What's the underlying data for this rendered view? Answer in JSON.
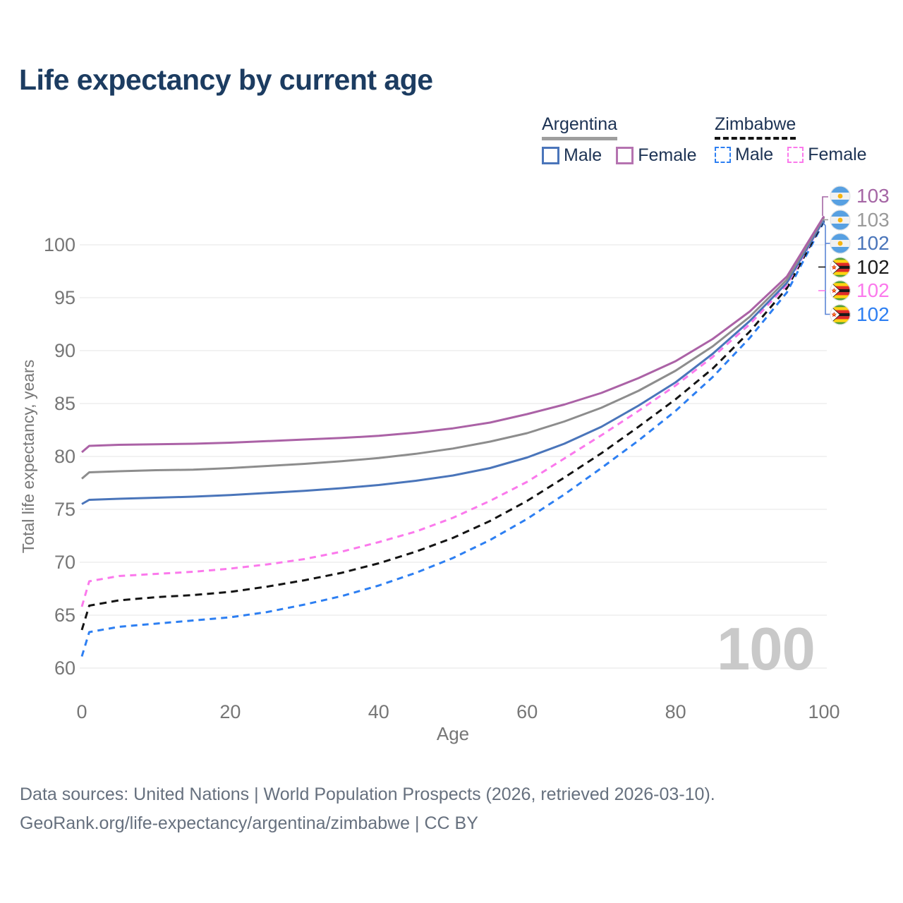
{
  "title": "Life expectancy by current age",
  "watermark_age": "100",
  "legend": {
    "groups": [
      {
        "name": "Argentina",
        "line_style": "solid",
        "line_color": "#9e9e9e",
        "items": [
          {
            "label": "Male",
            "color": "#4a75ba",
            "dashed": false
          },
          {
            "label": "Female",
            "color": "#b573b0",
            "dashed": false
          }
        ]
      },
      {
        "name": "Zimbabwe",
        "line_style": "dashed",
        "line_color": "#141414",
        "items": [
          {
            "label": "Male",
            "color": "#2d7ff2",
            "dashed": true
          },
          {
            "label": "Female",
            "color": "#fb79ec",
            "dashed": true
          }
        ]
      }
    ]
  },
  "end_labels": [
    {
      "value": "103",
      "color": "#a566a5",
      "flag": "argentina",
      "series": "Argentina Female"
    },
    {
      "value": "103",
      "color": "#9a9a9a",
      "flag": "argentina",
      "series": "Argentina Both sexes"
    },
    {
      "value": "102",
      "color": "#4a75ba",
      "flag": "argentina",
      "series": "Argentina Male"
    },
    {
      "value": "102",
      "color": "#1a1a1a",
      "flag": "zimbabwe",
      "series": "Zimbabwe Both sexes"
    },
    {
      "value": "102",
      "color": "#fb79ec",
      "flag": "zimbabwe",
      "series": "Zimbabwe Female"
    },
    {
      "value": "102",
      "color": "#2d7ff2",
      "flag": "zimbabwe",
      "series": "Zimbabwe Male"
    }
  ],
  "footer": {
    "line1": "Data sources: United Nations | World Population Prospects (2026, retrieved 2026-03-10).",
    "line2": "GeoRank.org/life-expectancy/argentina/zimbabwe | CC BY"
  },
  "chart_data": {
    "type": "line",
    "title": "Life expectancy by current age",
    "xlabel": "Age",
    "ylabel": "Total life expectancy, years",
    "xlim": [
      0,
      100
    ],
    "ylim": [
      60,
      103
    ],
    "xticks": [
      0,
      20,
      40,
      60,
      80,
      100
    ],
    "yticks": [
      60,
      65,
      70,
      75,
      80,
      85,
      90,
      95,
      100
    ],
    "grid": "horizontal",
    "legend_position": "top-right",
    "x": [
      0,
      1,
      5,
      10,
      15,
      20,
      25,
      30,
      35,
      40,
      45,
      50,
      55,
      60,
      65,
      70,
      75,
      80,
      85,
      90,
      95,
      100
    ],
    "series": [
      {
        "name": "Argentina Female",
        "color": "#ab62a6",
        "dash": null,
        "values": [
          80.4,
          81.0,
          81.1,
          81.15,
          81.2,
          81.3,
          81.45,
          81.6,
          81.75,
          81.95,
          82.25,
          82.65,
          83.2,
          84.0,
          84.9,
          86.0,
          87.4,
          89.0,
          91.1,
          93.7,
          97.0,
          102.7
        ]
      },
      {
        "name": "Argentina Both sexes",
        "color": "#8d8d8d",
        "dash": null,
        "values": [
          77.9,
          78.5,
          78.6,
          78.7,
          78.75,
          78.9,
          79.1,
          79.3,
          79.55,
          79.85,
          80.25,
          80.75,
          81.4,
          82.2,
          83.3,
          84.6,
          86.2,
          88.1,
          90.4,
          93.2,
          96.7,
          102.6
        ]
      },
      {
        "name": "Argentina Male",
        "color": "#4a75ba",
        "dash": null,
        "values": [
          75.5,
          75.9,
          76.0,
          76.1,
          76.2,
          76.35,
          76.55,
          76.75,
          77.0,
          77.3,
          77.7,
          78.2,
          78.9,
          79.9,
          81.2,
          82.8,
          84.8,
          87.0,
          89.7,
          92.8,
          96.4,
          102.4
        ]
      },
      {
        "name": "Zimbabwe Both sexes",
        "color": "#141414",
        "dash": "10 7",
        "values": [
          63.6,
          65.9,
          66.4,
          66.7,
          66.9,
          67.2,
          67.7,
          68.3,
          69.0,
          69.9,
          71.0,
          72.3,
          73.9,
          75.8,
          78.0,
          80.3,
          82.8,
          85.4,
          88.3,
          91.8,
          95.9,
          102.3
        ]
      },
      {
        "name": "Zimbabwe Female",
        "color": "#fb79ec",
        "dash": "9 7",
        "values": [
          65.8,
          68.2,
          68.7,
          68.9,
          69.1,
          69.4,
          69.8,
          70.3,
          71.0,
          71.9,
          72.9,
          74.2,
          75.8,
          77.6,
          79.8,
          82.0,
          84.3,
          86.7,
          89.4,
          92.5,
          96.2,
          102.4
        ]
      },
      {
        "name": "Zimbabwe Male",
        "color": "#2d7ff2",
        "dash": "9 7",
        "values": [
          61.1,
          63.4,
          63.9,
          64.2,
          64.5,
          64.8,
          65.3,
          66.0,
          66.8,
          67.8,
          69.0,
          70.4,
          72.1,
          74.1,
          76.4,
          78.9,
          81.5,
          84.3,
          87.5,
          91.2,
          95.5,
          102.2
        ]
      }
    ]
  }
}
